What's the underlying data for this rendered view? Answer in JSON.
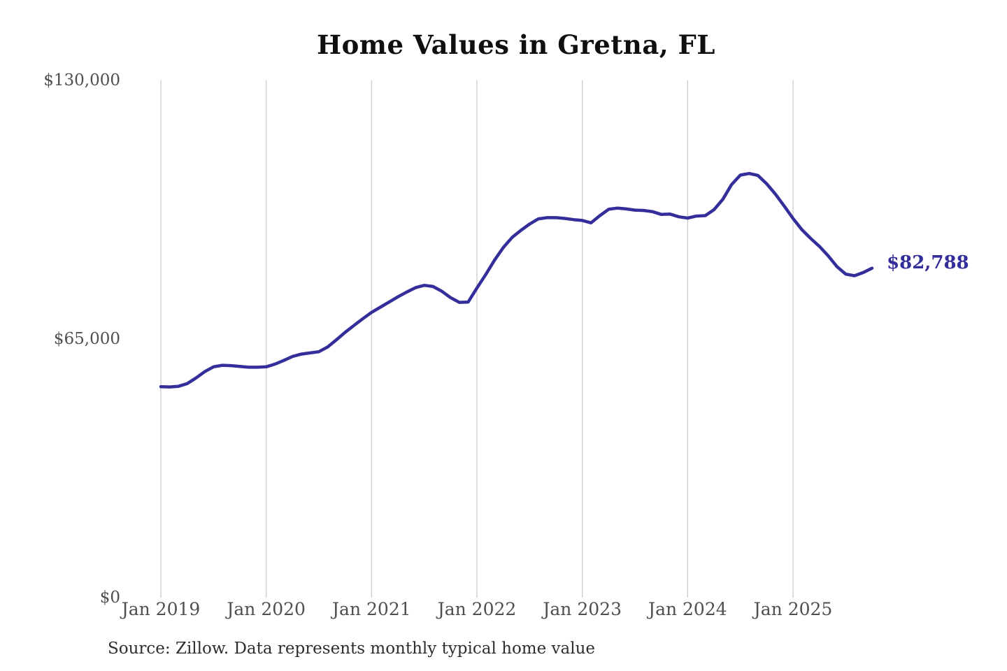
{
  "title": "Home Values in Gretna, FL",
  "source_note": "Source: Zillow. Data represents monthly typical home value",
  "colors": {
    "line": "#342e9b",
    "end_label": "#342e9b",
    "gridline": "#cccccc",
    "axis_text": "#4f4f4f",
    "title_text": "#0f0f0f",
    "source_text": "#2e2e2e",
    "background": "#ffffff"
  },
  "chart_data": {
    "type": "line",
    "title": "Home Values in Gretna, FL",
    "series_name": "Typical home value",
    "frequency": "monthly",
    "start_month": "Jan 2019",
    "end_month": "Oct 2025",
    "x_tick_labels": [
      "Jan 2019",
      "Jan 2020",
      "Jan 2021",
      "Jan 2022",
      "Jan 2023",
      "Jan 2024",
      "Jan 2025"
    ],
    "x_tick_month_step": 12,
    "y_ticks": [
      {
        "value": 0,
        "label": "$0"
      },
      {
        "value": 65000,
        "label": "$65,000"
      },
      {
        "value": 130000,
        "label": "$130,000"
      }
    ],
    "ylim": [
      0,
      130000
    ],
    "grid": "vertical-only",
    "legend": "none",
    "values": [
      53000,
      52950,
      53100,
      53800,
      55200,
      56800,
      58000,
      58400,
      58300,
      58100,
      57900,
      57900,
      58000,
      58700,
      59600,
      60600,
      61200,
      61500,
      61800,
      63000,
      64800,
      66700,
      68400,
      70100,
      71700,
      73000,
      74300,
      75600,
      76800,
      77900,
      78500,
      78200,
      77000,
      75400,
      74200,
      74300,
      77800,
      81200,
      84800,
      88000,
      90500,
      92300,
      93900,
      95200,
      95500,
      95500,
      95300,
      95000,
      94800,
      94200,
      96000,
      97600,
      97900,
      97700,
      97400,
      97300,
      97000,
      96300,
      96400,
      95700,
      95400,
      95900,
      96000,
      97500,
      100100,
      103800,
      106200,
      106600,
      106100,
      104000,
      101400,
      98400,
      95300,
      92500,
      90300,
      88300,
      85900,
      83200,
      81300,
      80900,
      81700,
      82788
    ],
    "last_value": 82788,
    "last_value_label": "$82,788"
  }
}
